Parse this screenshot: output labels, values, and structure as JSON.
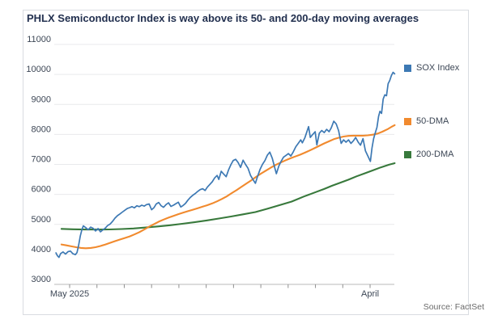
{
  "title": "PHLX Semiconductor Index is way above its 50- and 200-day moving averages",
  "source": "Source: FactSet",
  "chart_data": {
    "type": "line",
    "title": "PHLX Semiconductor Index is way above its 50- and 200-day moving averages",
    "xlabel": "",
    "ylabel": "",
    "grid": "horizontal",
    "legend_position": "right",
    "y_axis": {
      "min": 3000,
      "max": 11000,
      "tick_step": 1000,
      "ticks": [
        11000,
        10000,
        9000,
        8000,
        7000,
        6000,
        5000,
        4000,
        3000
      ]
    },
    "x_axis": {
      "unit": "months from May 2025",
      "month_tick_count": 12,
      "range": [
        -0.56,
        11.95
      ],
      "labels": [
        {
          "tick": 0,
          "text": "May 2025"
        },
        {
          "tick": 11,
          "text": "April"
        }
      ]
    },
    "series": [
      {
        "name": "SOX Index",
        "color": "#3d79b4",
        "width": 1.7,
        "points": [
          [
            -0.5,
            4050
          ],
          [
            -0.45,
            3960
          ],
          [
            -0.39,
            3900
          ],
          [
            -0.33,
            4030
          ],
          [
            -0.24,
            4080
          ],
          [
            -0.15,
            4010
          ],
          [
            -0.06,
            4090
          ],
          [
            0.03,
            4110
          ],
          [
            0.12,
            4020
          ],
          [
            0.21,
            3990
          ],
          [
            0.27,
            4060
          ],
          [
            0.33,
            4300
          ],
          [
            0.39,
            4620
          ],
          [
            0.45,
            4830
          ],
          [
            0.5,
            4950
          ],
          [
            0.59,
            4890
          ],
          [
            0.68,
            4820
          ],
          [
            0.77,
            4910
          ],
          [
            0.86,
            4870
          ],
          [
            0.95,
            4780
          ],
          [
            1.04,
            4860
          ],
          [
            1.13,
            4750
          ],
          [
            1.22,
            4820
          ],
          [
            1.31,
            4880
          ],
          [
            1.39,
            4960
          ],
          [
            1.48,
            5010
          ],
          [
            1.57,
            5100
          ],
          [
            1.66,
            5210
          ],
          [
            1.75,
            5290
          ],
          [
            1.84,
            5350
          ],
          [
            1.93,
            5410
          ],
          [
            2.02,
            5470
          ],
          [
            2.11,
            5530
          ],
          [
            2.2,
            5560
          ],
          [
            2.28,
            5590
          ],
          [
            2.37,
            5550
          ],
          [
            2.46,
            5620
          ],
          [
            2.55,
            5590
          ],
          [
            2.64,
            5640
          ],
          [
            2.73,
            5610
          ],
          [
            2.82,
            5660
          ],
          [
            2.91,
            5680
          ],
          [
            3.0,
            5490
          ],
          [
            3.09,
            5560
          ],
          [
            3.17,
            5680
          ],
          [
            3.26,
            5730
          ],
          [
            3.35,
            5620
          ],
          [
            3.44,
            5570
          ],
          [
            3.53,
            5660
          ],
          [
            3.62,
            5720
          ],
          [
            3.71,
            5600
          ],
          [
            3.8,
            5640
          ],
          [
            3.89,
            5690
          ],
          [
            3.98,
            5740
          ],
          [
            4.07,
            5580
          ],
          [
            4.15,
            5630
          ],
          [
            4.24,
            5700
          ],
          [
            4.33,
            5810
          ],
          [
            4.42,
            5900
          ],
          [
            4.51,
            5970
          ],
          [
            4.6,
            6030
          ],
          [
            4.69,
            6100
          ],
          [
            4.78,
            6160
          ],
          [
            4.87,
            6190
          ],
          [
            4.96,
            6130
          ],
          [
            5.04,
            6240
          ],
          [
            5.13,
            6330
          ],
          [
            5.22,
            6420
          ],
          [
            5.31,
            6550
          ],
          [
            5.4,
            6630
          ],
          [
            5.46,
            6500
          ],
          [
            5.55,
            6770
          ],
          [
            5.64,
            6680
          ],
          [
            5.73,
            6590
          ],
          [
            5.82,
            6820
          ],
          [
            5.91,
            7000
          ],
          [
            5.99,
            7130
          ],
          [
            6.08,
            7170
          ],
          [
            6.17,
            7060
          ],
          [
            6.26,
            6900
          ],
          [
            6.35,
            7140
          ],
          [
            6.44,
            7000
          ],
          [
            6.53,
            6870
          ],
          [
            6.62,
            6640
          ],
          [
            6.71,
            6500
          ],
          [
            6.8,
            6370
          ],
          [
            6.88,
            6600
          ],
          [
            6.97,
            6830
          ],
          [
            7.06,
            7000
          ],
          [
            7.15,
            7130
          ],
          [
            7.24,
            7310
          ],
          [
            7.33,
            7410
          ],
          [
            7.42,
            7200
          ],
          [
            7.51,
            6890
          ],
          [
            7.57,
            6690
          ],
          [
            7.66,
            6950
          ],
          [
            7.74,
            7100
          ],
          [
            7.83,
            7240
          ],
          [
            7.92,
            7300
          ],
          [
            8.01,
            7360
          ],
          [
            8.1,
            7280
          ],
          [
            8.19,
            7420
          ],
          [
            8.28,
            7590
          ],
          [
            8.37,
            7700
          ],
          [
            8.46,
            7820
          ],
          [
            8.52,
            7720
          ],
          [
            8.61,
            7880
          ],
          [
            8.69,
            8100
          ],
          [
            8.75,
            8260
          ],
          [
            8.81,
            7900
          ],
          [
            8.9,
            8000
          ],
          [
            8.99,
            8090
          ],
          [
            9.05,
            7650
          ],
          [
            9.14,
            8040
          ],
          [
            9.23,
            8130
          ],
          [
            9.32,
            8060
          ],
          [
            9.41,
            8170
          ],
          [
            9.5,
            8090
          ],
          [
            9.58,
            8220
          ],
          [
            9.67,
            8440
          ],
          [
            9.76,
            8350
          ],
          [
            9.85,
            8120
          ],
          [
            9.94,
            7700
          ],
          [
            10.03,
            7820
          ],
          [
            10.12,
            7740
          ],
          [
            10.21,
            7820
          ],
          [
            10.3,
            7700
          ],
          [
            10.39,
            7790
          ],
          [
            10.47,
            7900
          ],
          [
            10.56,
            7750
          ],
          [
            10.65,
            7640
          ],
          [
            10.74,
            7860
          ],
          [
            10.83,
            7450
          ],
          [
            10.92,
            7280
          ],
          [
            11.01,
            7100
          ],
          [
            11.07,
            7550
          ],
          [
            11.13,
            7860
          ],
          [
            11.19,
            8050
          ],
          [
            11.25,
            8230
          ],
          [
            11.31,
            8600
          ],
          [
            11.36,
            8770
          ],
          [
            11.42,
            8700
          ],
          [
            11.48,
            9180
          ],
          [
            11.54,
            9320
          ],
          [
            11.6,
            9290
          ],
          [
            11.66,
            9690
          ],
          [
            11.72,
            9800
          ],
          [
            11.78,
            9960
          ],
          [
            11.84,
            10070
          ],
          [
            11.9,
            10020
          ]
        ]
      },
      {
        "name": "50-DMA",
        "color": "#f18a2e",
        "width": 2.1,
        "points": [
          [
            -0.3,
            4330
          ],
          [
            -0.12,
            4300
          ],
          [
            0.06,
            4270
          ],
          [
            0.24,
            4240
          ],
          [
            0.42,
            4215
          ],
          [
            0.59,
            4205
          ],
          [
            0.77,
            4215
          ],
          [
            0.95,
            4240
          ],
          [
            1.13,
            4280
          ],
          [
            1.31,
            4330
          ],
          [
            1.48,
            4385
          ],
          [
            1.66,
            4440
          ],
          [
            1.84,
            4495
          ],
          [
            2.02,
            4545
          ],
          [
            2.2,
            4600
          ],
          [
            2.37,
            4665
          ],
          [
            2.55,
            4740
          ],
          [
            2.73,
            4830
          ],
          [
            2.91,
            4925
          ],
          [
            3.09,
            5010
          ],
          [
            3.26,
            5090
          ],
          [
            3.44,
            5160
          ],
          [
            3.62,
            5225
          ],
          [
            3.8,
            5285
          ],
          [
            3.98,
            5340
          ],
          [
            4.15,
            5390
          ],
          [
            4.33,
            5440
          ],
          [
            4.51,
            5490
          ],
          [
            4.69,
            5540
          ],
          [
            4.87,
            5590
          ],
          [
            5.04,
            5640
          ],
          [
            5.22,
            5700
          ],
          [
            5.4,
            5770
          ],
          [
            5.58,
            5850
          ],
          [
            5.76,
            5940
          ],
          [
            5.93,
            6040
          ],
          [
            6.11,
            6140
          ],
          [
            6.29,
            6250
          ],
          [
            6.47,
            6360
          ],
          [
            6.65,
            6470
          ],
          [
            6.82,
            6580
          ],
          [
            7.0,
            6690
          ],
          [
            7.18,
            6790
          ],
          [
            7.36,
            6890
          ],
          [
            7.54,
            6980
          ],
          [
            7.72,
            7060
          ],
          [
            7.89,
            7130
          ],
          [
            8.07,
            7200
          ],
          [
            8.25,
            7260
          ],
          [
            8.43,
            7320
          ],
          [
            8.61,
            7390
          ],
          [
            8.78,
            7460
          ],
          [
            8.96,
            7540
          ],
          [
            9.14,
            7620
          ],
          [
            9.32,
            7700
          ],
          [
            9.5,
            7770
          ],
          [
            9.67,
            7840
          ],
          [
            9.85,
            7890
          ],
          [
            10.03,
            7930
          ],
          [
            10.21,
            7950
          ],
          [
            10.39,
            7960
          ],
          [
            10.56,
            7960
          ],
          [
            10.74,
            7960
          ],
          [
            10.92,
            7970
          ],
          [
            11.1,
            7990
          ],
          [
            11.28,
            8030
          ],
          [
            11.45,
            8090
          ],
          [
            11.63,
            8170
          ],
          [
            11.78,
            8250
          ],
          [
            11.9,
            8310
          ]
        ]
      },
      {
        "name": "200-DMA",
        "color": "#38793c",
        "width": 2.1,
        "points": [
          [
            -0.3,
            4850
          ],
          [
            0.12,
            4838
          ],
          [
            0.56,
            4830
          ],
          [
            1.01,
            4828
          ],
          [
            1.45,
            4832
          ],
          [
            1.9,
            4845
          ],
          [
            2.34,
            4865
          ],
          [
            2.79,
            4895
          ],
          [
            3.23,
            4930
          ],
          [
            3.68,
            4972
          ],
          [
            4.12,
            5020
          ],
          [
            4.57,
            5072
          ],
          [
            5.01,
            5130
          ],
          [
            5.46,
            5195
          ],
          [
            5.91,
            5262
          ],
          [
            6.35,
            5335
          ],
          [
            6.8,
            5412
          ],
          [
            7.24,
            5520
          ],
          [
            7.68,
            5640
          ],
          [
            8.13,
            5760
          ],
          [
            8.58,
            5930
          ],
          [
            8.81,
            6010
          ],
          [
            9.02,
            6080
          ],
          [
            9.32,
            6180
          ],
          [
            9.61,
            6290
          ],
          [
            9.91,
            6390
          ],
          [
            10.21,
            6490
          ],
          [
            10.5,
            6600
          ],
          [
            10.8,
            6700
          ],
          [
            11.1,
            6800
          ],
          [
            11.39,
            6900
          ],
          [
            11.69,
            6990
          ],
          [
            11.9,
            7040
          ]
        ]
      }
    ]
  }
}
